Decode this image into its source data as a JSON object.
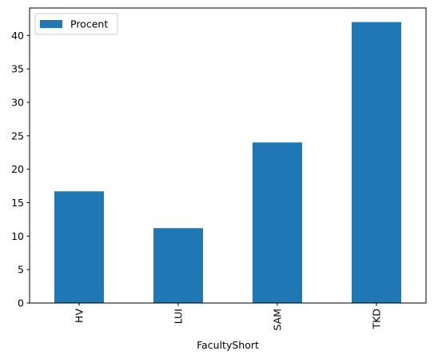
{
  "chart_data": {
    "type": "bar",
    "categories": [
      "HV",
      "LUI",
      "SAM",
      "TKD"
    ],
    "series": [
      {
        "name": "Procent",
        "values": [
          16.7,
          11.2,
          24.0,
          42.0
        ],
        "color": "#1f77b4"
      }
    ],
    "xlabel": "FacultyShort",
    "ylabel": "",
    "ylim": [
      0,
      44.1
    ],
    "yticks": [
      0,
      5,
      10,
      15,
      20,
      25,
      30,
      35,
      40
    ],
    "grid": false,
    "legend_position": "top-left",
    "xtick_rotation": 90
  }
}
